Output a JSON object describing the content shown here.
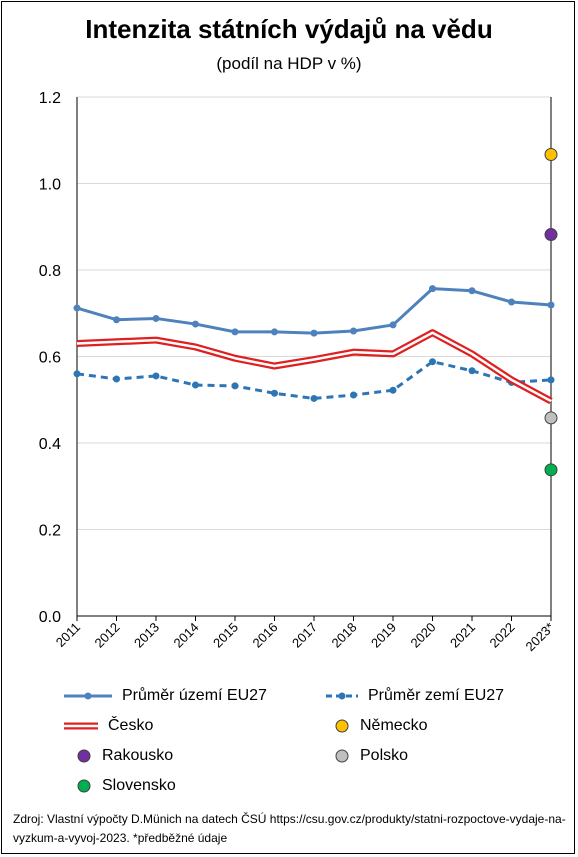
{
  "title": "Intenzita státních výdajů na vědu",
  "subtitle": "(podíl na HDP v %)",
  "source_text": "Zdroj: Vlastní výpočty D.Münich na datech ČSÚ https://csu.gov.cz/produkty/statni-rozpoctove-vydaje-na-vyzkum-a-vyvoj-2023. *předběžné údaje",
  "chart_data": {
    "type": "line",
    "categories": [
      "2011",
      "2012",
      "2013",
      "2014",
      "2015",
      "2016",
      "2017",
      "2018",
      "2019",
      "2020",
      "2021",
      "2022",
      "2023*"
    ],
    "ylim": [
      0.0,
      1.2
    ],
    "yticks": [
      "0.0",
      "0.2",
      "0.4",
      "0.6",
      "0.8",
      "1.0",
      "1.2"
    ],
    "grid": true,
    "series": [
      {
        "name": "Průměr území EU27",
        "style": "solid-marker",
        "color": "#4f81bd",
        "values": [
          0.712,
          0.685,
          0.688,
          0.675,
          0.657,
          0.657,
          0.654,
          0.659,
          0.673,
          0.757,
          0.752,
          0.726,
          0.719
        ]
      },
      {
        "name": "Průměr zemí EU27",
        "style": "dashed-marker",
        "color": "#2e75b6",
        "values": [
          0.56,
          0.548,
          0.555,
          0.534,
          0.532,
          0.515,
          0.503,
          0.511,
          0.522,
          0.588,
          0.567,
          0.54,
          0.546
        ]
      },
      {
        "name": "Česko",
        "style": "double-red",
        "color": "#e02020",
        "values": [
          0.63,
          0.634,
          0.638,
          0.622,
          0.596,
          0.578,
          0.593,
          0.61,
          0.606,
          0.655,
          0.606,
          0.546,
          0.497
        ]
      }
    ],
    "points": [
      {
        "name": "Německo",
        "category": "2023*",
        "value": 1.067,
        "color": "#ffc000"
      },
      {
        "name": "Rakousko",
        "category": "2023*",
        "value": 0.882,
        "color": "#7030a0"
      },
      {
        "name": "Polsko",
        "category": "2023*",
        "value": 0.458,
        "color": "#bfbfbf"
      },
      {
        "name": "Slovensko",
        "category": "2023*",
        "value": 0.338,
        "color": "#00b050"
      }
    ]
  },
  "legend": {
    "eu_territory": "Průměr území EU27",
    "eu_countries": "Průměr zemí EU27",
    "czech": "Česko",
    "germany": "Německo",
    "austria": "Rakousko",
    "poland": "Polsko",
    "slovakia": "Slovensko"
  }
}
